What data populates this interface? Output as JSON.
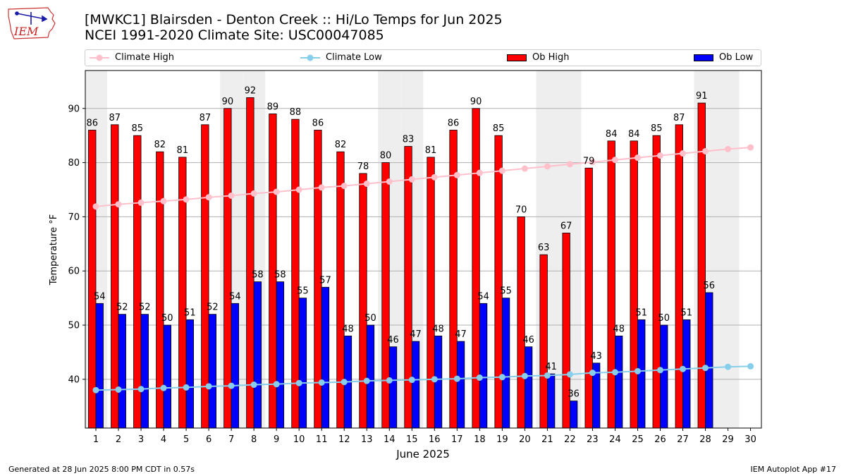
{
  "header": {
    "title_line1": "[MWKC1] Blairsden - Denton Creek :: Hi/Lo Temps for Jun 2025",
    "title_line2": "NCEI 1991-2020 Climate Site: USC00047085",
    "logo_text": "IEM"
  },
  "legend": {
    "climate_high": "Climate High",
    "climate_low": "Climate Low",
    "ob_high": "Ob High",
    "ob_low": "Ob Low"
  },
  "footer": {
    "generated": "Generated at 28 Jun 2025 8:00 PM CDT in 0.57s",
    "app": "IEM Autoplot App #17"
  },
  "colors": {
    "ob_high": "#ff0000",
    "ob_low": "#0000ff",
    "climate_high": "#ffc0cb",
    "climate_low": "#87ceeb",
    "weekend_shade": "#eeeeee",
    "grid": "#b0b0b0"
  },
  "chart_data": {
    "type": "bar",
    "xlabel": "June 2025",
    "ylabel": "Temperature °F",
    "ylim": [
      31,
      97
    ],
    "yticks": [
      40,
      50,
      60,
      70,
      80,
      90
    ],
    "grid": "horizontal",
    "legend_placement": "top",
    "categories": [
      "1",
      "2",
      "3",
      "4",
      "5",
      "6",
      "7",
      "8",
      "9",
      "10",
      "11",
      "12",
      "13",
      "14",
      "15",
      "16",
      "17",
      "18",
      "19",
      "20",
      "21",
      "22",
      "23",
      "24",
      "25",
      "26",
      "27",
      "28",
      "29",
      "30"
    ],
    "weekend_days": [
      1,
      7,
      8,
      14,
      15,
      21,
      22,
      28,
      29
    ],
    "series": [
      {
        "name": "Ob High",
        "type": "bar",
        "values": [
          86,
          87,
          85,
          82,
          81,
          87,
          90,
          92,
          89,
          88,
          86,
          82,
          78,
          80,
          83,
          81,
          86,
          90,
          85,
          70,
          63,
          67,
          79,
          84,
          84,
          85,
          87,
          91,
          null,
          null
        ]
      },
      {
        "name": "Ob Low",
        "type": "bar",
        "values": [
          54,
          52,
          52,
          50,
          51,
          52,
          54,
          58,
          58,
          55,
          57,
          48,
          50,
          46,
          47,
          48,
          47,
          54,
          55,
          46,
          41,
          36,
          43,
          48,
          51,
          50,
          51,
          56,
          null,
          null
        ]
      },
      {
        "name": "Climate High",
        "type": "line",
        "values": [
          71.9,
          72.3,
          72.6,
          72.9,
          73.2,
          73.6,
          73.9,
          74.3,
          74.6,
          75.0,
          75.4,
          75.7,
          76.1,
          76.5,
          76.9,
          77.3,
          77.7,
          78.1,
          78.5,
          78.9,
          79.3,
          79.7,
          80.1,
          80.5,
          80.9,
          81.3,
          81.7,
          82.1,
          82.5,
          82.8
        ]
      },
      {
        "name": "Climate Low",
        "type": "line",
        "values": [
          38.0,
          38.1,
          38.2,
          38.4,
          38.5,
          38.7,
          38.8,
          39.0,
          39.1,
          39.3,
          39.4,
          39.5,
          39.7,
          39.8,
          39.9,
          40.0,
          40.1,
          40.3,
          40.4,
          40.6,
          40.7,
          40.9,
          41.2,
          41.3,
          41.5,
          41.7,
          41.9,
          42.1,
          42.3,
          42.4
        ]
      }
    ]
  }
}
